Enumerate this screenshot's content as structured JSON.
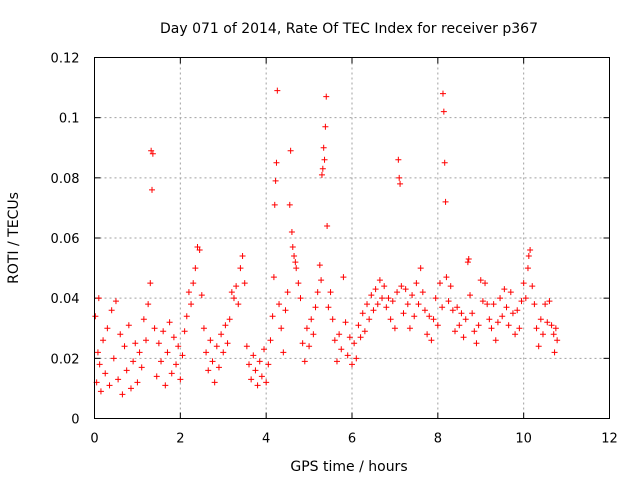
{
  "chart_data": {
    "type": "scatter",
    "title": "Day 071 of 2014, Rate Of TEC Index for receiver p367",
    "xlabel": "GPS time / hours",
    "ylabel": "ROTI / TECUs",
    "xlim": [
      0,
      12
    ],
    "ylim": [
      0,
      0.12
    ],
    "xticks": [
      0,
      2,
      4,
      6,
      8,
      10,
      12
    ],
    "xtick_labels": [
      "0",
      "2",
      "4",
      "6",
      "8",
      "10",
      "12"
    ],
    "yticks": [
      0,
      0.02,
      0.04,
      0.06,
      0.08,
      0.1,
      0.12
    ],
    "ytick_labels": [
      "0",
      "0.02",
      "0.04",
      "0.06",
      "0.08",
      "0.1",
      "0.12"
    ],
    "grid": true,
    "marker": "+",
    "color": "#ff0000",
    "series": [
      {
        "name": "ROTI",
        "points": [
          [
            0.02,
            0.034
          ],
          [
            0.05,
            0.012
          ],
          [
            0.08,
            0.022
          ],
          [
            0.1,
            0.04
          ],
          [
            0.12,
            0.018
          ],
          [
            0.15,
            0.009
          ],
          [
            0.2,
            0.026
          ],
          [
            0.25,
            0.015
          ],
          [
            0.3,
            0.03
          ],
          [
            0.35,
            0.011
          ],
          [
            0.4,
            0.036
          ],
          [
            0.45,
            0.02
          ],
          [
            0.5,
            0.039
          ],
          [
            0.55,
            0.013
          ],
          [
            0.6,
            0.028
          ],
          [
            0.65,
            0.008
          ],
          [
            0.7,
            0.024
          ],
          [
            0.75,
            0.016
          ],
          [
            0.8,
            0.031
          ],
          [
            0.85,
            0.01
          ],
          [
            0.9,
            0.019
          ],
          [
            0.95,
            0.025
          ],
          [
            1.0,
            0.012
          ],
          [
            1.05,
            0.022
          ],
          [
            1.1,
            0.017
          ],
          [
            1.15,
            0.033
          ],
          [
            1.2,
            0.026
          ],
          [
            1.25,
            0.038
          ],
          [
            1.3,
            0.045
          ],
          [
            1.32,
            0.089
          ],
          [
            1.34,
            0.076
          ],
          [
            1.36,
            0.088
          ],
          [
            1.4,
            0.03
          ],
          [
            1.45,
            0.014
          ],
          [
            1.5,
            0.025
          ],
          [
            1.55,
            0.019
          ],
          [
            1.6,
            0.029
          ],
          [
            1.65,
            0.011
          ],
          [
            1.7,
            0.022
          ],
          [
            1.75,
            0.032
          ],
          [
            1.8,
            0.015
          ],
          [
            1.85,
            0.027
          ],
          [
            1.9,
            0.018
          ],
          [
            1.95,
            0.024
          ],
          [
            2.0,
            0.013
          ],
          [
            2.05,
            0.021
          ],
          [
            2.1,
            0.029
          ],
          [
            2.15,
            0.034
          ],
          [
            2.2,
            0.042
          ],
          [
            2.25,
            0.038
          ],
          [
            2.3,
            0.045
          ],
          [
            2.35,
            0.05
          ],
          [
            2.4,
            0.057
          ],
          [
            2.45,
            0.056
          ],
          [
            2.5,
            0.041
          ],
          [
            2.55,
            0.03
          ],
          [
            2.6,
            0.022
          ],
          [
            2.65,
            0.016
          ],
          [
            2.7,
            0.026
          ],
          [
            2.75,
            0.019
          ],
          [
            2.8,
            0.012
          ],
          [
            2.85,
            0.024
          ],
          [
            2.9,
            0.017
          ],
          [
            2.95,
            0.028
          ],
          [
            3.0,
            0.022
          ],
          [
            3.05,
            0.031
          ],
          [
            3.1,
            0.025
          ],
          [
            3.15,
            0.033
          ],
          [
            3.2,
            0.042
          ],
          [
            3.25,
            0.04
          ],
          [
            3.3,
            0.044
          ],
          [
            3.35,
            0.038
          ],
          [
            3.4,
            0.05
          ],
          [
            3.45,
            0.054
          ],
          [
            3.5,
            0.045
          ],
          [
            3.55,
            0.024
          ],
          [
            3.6,
            0.018
          ],
          [
            3.65,
            0.013
          ],
          [
            3.7,
            0.021
          ],
          [
            3.75,
            0.016
          ],
          [
            3.8,
            0.011
          ],
          [
            3.85,
            0.019
          ],
          [
            3.9,
            0.014
          ],
          [
            3.95,
            0.023
          ],
          [
            4.0,
            0.012
          ],
          [
            4.05,
            0.018
          ],
          [
            4.1,
            0.026
          ],
          [
            4.15,
            0.034
          ],
          [
            4.18,
            0.047
          ],
          [
            4.2,
            0.071
          ],
          [
            4.22,
            0.079
          ],
          [
            4.24,
            0.085
          ],
          [
            4.26,
            0.109
          ],
          [
            4.3,
            0.038
          ],
          [
            4.35,
            0.03
          ],
          [
            4.4,
            0.022
          ],
          [
            4.45,
            0.036
          ],
          [
            4.5,
            0.042
          ],
          [
            4.55,
            0.071
          ],
          [
            4.57,
            0.089
          ],
          [
            4.6,
            0.062
          ],
          [
            4.62,
            0.057
          ],
          [
            4.65,
            0.054
          ],
          [
            4.68,
            0.052
          ],
          [
            4.7,
            0.05
          ],
          [
            4.75,
            0.045
          ],
          [
            4.8,
            0.04
          ],
          [
            4.85,
            0.025
          ],
          [
            4.9,
            0.019
          ],
          [
            4.95,
            0.03
          ],
          [
            5.0,
            0.024
          ],
          [
            5.05,
            0.033
          ],
          [
            5.1,
            0.028
          ],
          [
            5.15,
            0.037
          ],
          [
            5.2,
            0.042
          ],
          [
            5.25,
            0.051
          ],
          [
            5.28,
            0.046
          ],
          [
            5.3,
            0.081
          ],
          [
            5.32,
            0.083
          ],
          [
            5.34,
            0.09
          ],
          [
            5.36,
            0.086
          ],
          [
            5.38,
            0.097
          ],
          [
            5.4,
            0.107
          ],
          [
            5.42,
            0.064
          ],
          [
            5.45,
            0.037
          ],
          [
            5.5,
            0.042
          ],
          [
            5.55,
            0.033
          ],
          [
            5.6,
            0.026
          ],
          [
            5.65,
            0.019
          ],
          [
            5.7,
            0.028
          ],
          [
            5.75,
            0.023
          ],
          [
            5.8,
            0.047
          ],
          [
            5.85,
            0.032
          ],
          [
            5.9,
            0.021
          ],
          [
            5.95,
            0.027
          ],
          [
            6.0,
            0.018
          ],
          [
            6.05,
            0.025
          ],
          [
            6.1,
            0.02
          ],
          [
            6.15,
            0.031
          ],
          [
            6.2,
            0.027
          ],
          [
            6.25,
            0.035
          ],
          [
            6.3,
            0.029
          ],
          [
            6.35,
            0.038
          ],
          [
            6.4,
            0.033
          ],
          [
            6.45,
            0.041
          ],
          [
            6.5,
            0.036
          ],
          [
            6.55,
            0.043
          ],
          [
            6.6,
            0.038
          ],
          [
            6.65,
            0.046
          ],
          [
            6.7,
            0.04
          ],
          [
            6.75,
            0.044
          ],
          [
            6.8,
            0.037
          ],
          [
            6.85,
            0.04
          ],
          [
            6.9,
            0.033
          ],
          [
            6.95,
            0.039
          ],
          [
            7.0,
            0.03
          ],
          [
            7.05,
            0.042
          ],
          [
            7.08,
            0.086
          ],
          [
            7.1,
            0.08
          ],
          [
            7.12,
            0.078
          ],
          [
            7.15,
            0.044
          ],
          [
            7.2,
            0.035
          ],
          [
            7.25,
            0.043
          ],
          [
            7.3,
            0.038
          ],
          [
            7.35,
            0.03
          ],
          [
            7.4,
            0.041
          ],
          [
            7.45,
            0.034
          ],
          [
            7.5,
            0.045
          ],
          [
            7.55,
            0.038
          ],
          [
            7.6,
            0.05
          ],
          [
            7.65,
            0.042
          ],
          [
            7.7,
            0.036
          ],
          [
            7.75,
            0.028
          ],
          [
            7.8,
            0.034
          ],
          [
            7.85,
            0.026
          ],
          [
            7.9,
            0.033
          ],
          [
            7.95,
            0.04
          ],
          [
            8.0,
            0.031
          ],
          [
            8.05,
            0.045
          ],
          [
            8.1,
            0.037
          ],
          [
            8.12,
            0.108
          ],
          [
            8.14,
            0.102
          ],
          [
            8.16,
            0.085
          ],
          [
            8.18,
            0.072
          ],
          [
            8.2,
            0.047
          ],
          [
            8.25,
            0.039
          ],
          [
            8.3,
            0.044
          ],
          [
            8.35,
            0.036
          ],
          [
            8.4,
            0.029
          ],
          [
            8.45,
            0.037
          ],
          [
            8.5,
            0.031
          ],
          [
            8.55,
            0.035
          ],
          [
            8.6,
            0.027
          ],
          [
            8.65,
            0.033
          ],
          [
            8.7,
            0.052
          ],
          [
            8.72,
            0.053
          ],
          [
            8.75,
            0.041
          ],
          [
            8.8,
            0.035
          ],
          [
            8.85,
            0.029
          ],
          [
            8.9,
            0.025
          ],
          [
            8.95,
            0.031
          ],
          [
            9.0,
            0.046
          ],
          [
            9.05,
            0.039
          ],
          [
            9.1,
            0.045
          ],
          [
            9.15,
            0.038
          ],
          [
            9.2,
            0.033
          ],
          [
            9.25,
            0.03
          ],
          [
            9.3,
            0.038
          ],
          [
            9.35,
            0.026
          ],
          [
            9.4,
            0.032
          ],
          [
            9.45,
            0.04
          ],
          [
            9.5,
            0.034
          ],
          [
            9.55,
            0.043
          ],
          [
            9.6,
            0.037
          ],
          [
            9.65,
            0.031
          ],
          [
            9.7,
            0.042
          ],
          [
            9.75,
            0.035
          ],
          [
            9.8,
            0.028
          ],
          [
            9.85,
            0.036
          ],
          [
            9.9,
            0.03
          ],
          [
            9.95,
            0.039
          ],
          [
            10.0,
            0.045
          ],
          [
            10.05,
            0.04
          ],
          [
            10.1,
            0.05
          ],
          [
            10.12,
            0.054
          ],
          [
            10.15,
            0.056
          ],
          [
            10.2,
            0.044
          ],
          [
            10.25,
            0.038
          ],
          [
            10.3,
            0.03
          ],
          [
            10.35,
            0.024
          ],
          [
            10.4,
            0.033
          ],
          [
            10.45,
            0.028
          ],
          [
            10.5,
            0.038
          ],
          [
            10.55,
            0.032
          ],
          [
            10.6,
            0.039
          ],
          [
            10.65,
            0.031
          ],
          [
            10.7,
            0.028
          ],
          [
            10.72,
            0.022
          ],
          [
            10.75,
            0.03
          ],
          [
            10.78,
            0.026
          ]
        ]
      }
    ]
  }
}
